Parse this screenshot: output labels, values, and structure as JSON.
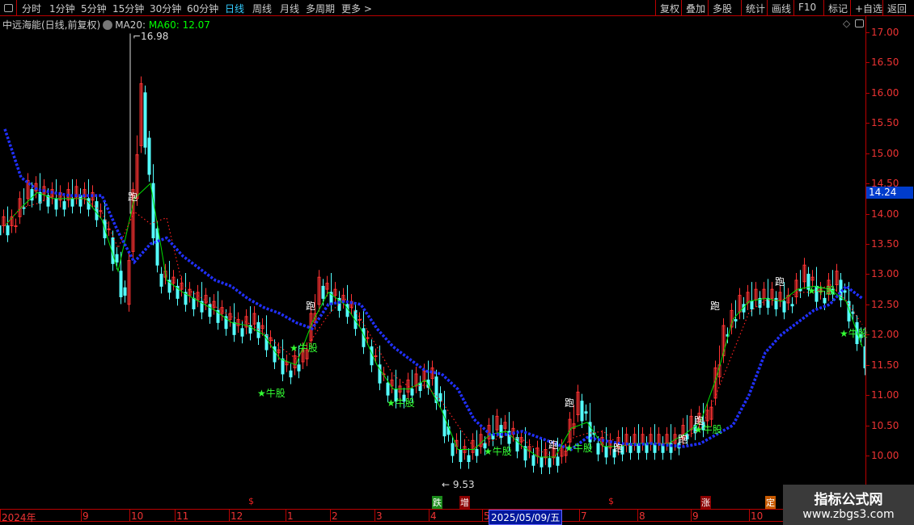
{
  "toolbar": {
    "periods": [
      "分时",
      "1分钟",
      "5分钟",
      "15分钟",
      "30分钟",
      "60分钟",
      "日线",
      "周线",
      "月线",
      "多周期",
      "更多 >"
    ],
    "active": "日线",
    "buttons": [
      "复权",
      "叠加",
      "多股",
      "统计",
      "画线",
      "F10",
      "标记",
      "+自选",
      "返回"
    ]
  },
  "info": {
    "title": "中远海能(日线,前复权)",
    "ma20": "MA20:",
    "ma60": "MA60: 12.07"
  },
  "price_axis": {
    "ticks": [
      "17.00",
      "16.50",
      "16.00",
      "15.50",
      "15.00",
      "14.50",
      "14.00",
      "13.50",
      "13.00",
      "12.50",
      "12.00",
      "11.50",
      "11.00",
      "10.50",
      "10.00"
    ],
    "current": "14.24"
  },
  "time_axis": {
    "labels": [
      "2024年",
      "9",
      "10",
      "11",
      "12",
      "1",
      "2",
      "3",
      "4",
      "5",
      "7",
      "8",
      "9",
      "10"
    ],
    "cursor_date": "2025/05/09/五"
  },
  "events": [
    {
      "t": "$",
      "c": "#e22"
    },
    {
      "t": "跌",
      "c": "#1a8a1a"
    },
    {
      "t": "增",
      "c": "#8b0000"
    },
    {
      "t": "$",
      "c": "#e22"
    },
    {
      "t": "涨",
      "c": "#8b0000"
    },
    {
      "t": "定",
      "c": "#c85a00"
    }
  ],
  "annotations": {
    "high": "16.98",
    "low": "9.53"
  },
  "markers": [
    {
      "t": "跑",
      "i": 8,
      "p": 14.3
    },
    {
      "t": "跑",
      "i": 19,
      "p": 12.5
    },
    {
      "t": "★牛股",
      "i": 18,
      "p": 11.8
    },
    {
      "t": "★牛股",
      "i": 16,
      "p": 11.05
    },
    {
      "t": "★牛股",
      "i": 24,
      "p": 10.9
    },
    {
      "t": "★牛股",
      "i": 30,
      "p": 10.1
    },
    {
      "t": "跑",
      "i": 35,
      "p": 10.9
    },
    {
      "t": "跑",
      "i": 34,
      "p": 10.2
    },
    {
      "t": "★牛股",
      "i": 35,
      "p": 10.15
    },
    {
      "t": "跑",
      "i": 38,
      "p": 10.15
    },
    {
      "t": "跑",
      "i": 42,
      "p": 10.3
    },
    {
      "t": "跑",
      "i": 43,
      "p": 10.6
    },
    {
      "t": "★牛股",
      "i": 43,
      "p": 10.45
    },
    {
      "t": "跑",
      "i": 44,
      "p": 12.5
    },
    {
      "t": "跑",
      "i": 48,
      "p": 12.9
    },
    {
      "t": "★牛股",
      "i": 50,
      "p": 12.75
    },
    {
      "t": "★牛股",
      "i": 52,
      "p": 12.05
    }
  ],
  "watermark": {
    "title": "指标公式网",
    "url": "www.zbgs3.com"
  },
  "chart_data": {
    "type": "candlestick",
    "ylim": [
      9.5,
      17.2
    ],
    "close": [
      13.8,
      14.4,
      14.3,
      14.2,
      14.3,
      14.2,
      13.6,
      12.5,
      16.0,
      13.0,
      12.8,
      12.6,
      12.5,
      12.3,
      12.1,
      12.2,
      11.8,
      11.4,
      11.6,
      12.8,
      12.6,
      12.4,
      11.8,
      11.2,
      11.0,
      11.2,
      11.3,
      10.2,
      10.0,
      10.2,
      10.5,
      10.3,
      10.0,
      9.95,
      10.0,
      10.9,
      10.2,
      10.1,
      10.2,
      10.2,
      10.2,
      10.2,
      10.5,
      10.6,
      12.0,
      12.5,
      12.6,
      12.6,
      12.5,
      13.0,
      12.6,
      12.9,
      12.2,
      11.4
    ],
    "ma_blue": [
      15.4,
      14.6,
      14.4,
      14.35,
      14.3,
      14.3,
      14.3,
      13.7,
      13.2,
      13.5,
      13.6,
      13.3,
      13.1,
      12.9,
      12.8,
      12.6,
      12.45,
      12.35,
      12.2,
      12.1,
      12.5,
      12.55,
      12.5,
      12.1,
      11.8,
      11.6,
      11.4,
      11.35,
      11.1,
      10.6,
      10.35,
      10.35,
      10.4,
      10.3,
      10.2,
      10.1,
      10.3,
      10.25,
      10.2,
      10.18,
      10.2,
      10.17,
      10.15,
      10.2,
      10.35,
      10.5,
      11.0,
      11.7,
      12.0,
      12.2,
      12.4,
      12.5,
      12.8,
      12.6
    ]
  },
  "colors": {
    "up": "#ff3232",
    "down": "#54ffff",
    "ma_blue": "#2030ff",
    "ma_green": "#00e000",
    "ma_red": "#ff2020",
    "grid": "#b00000"
  }
}
